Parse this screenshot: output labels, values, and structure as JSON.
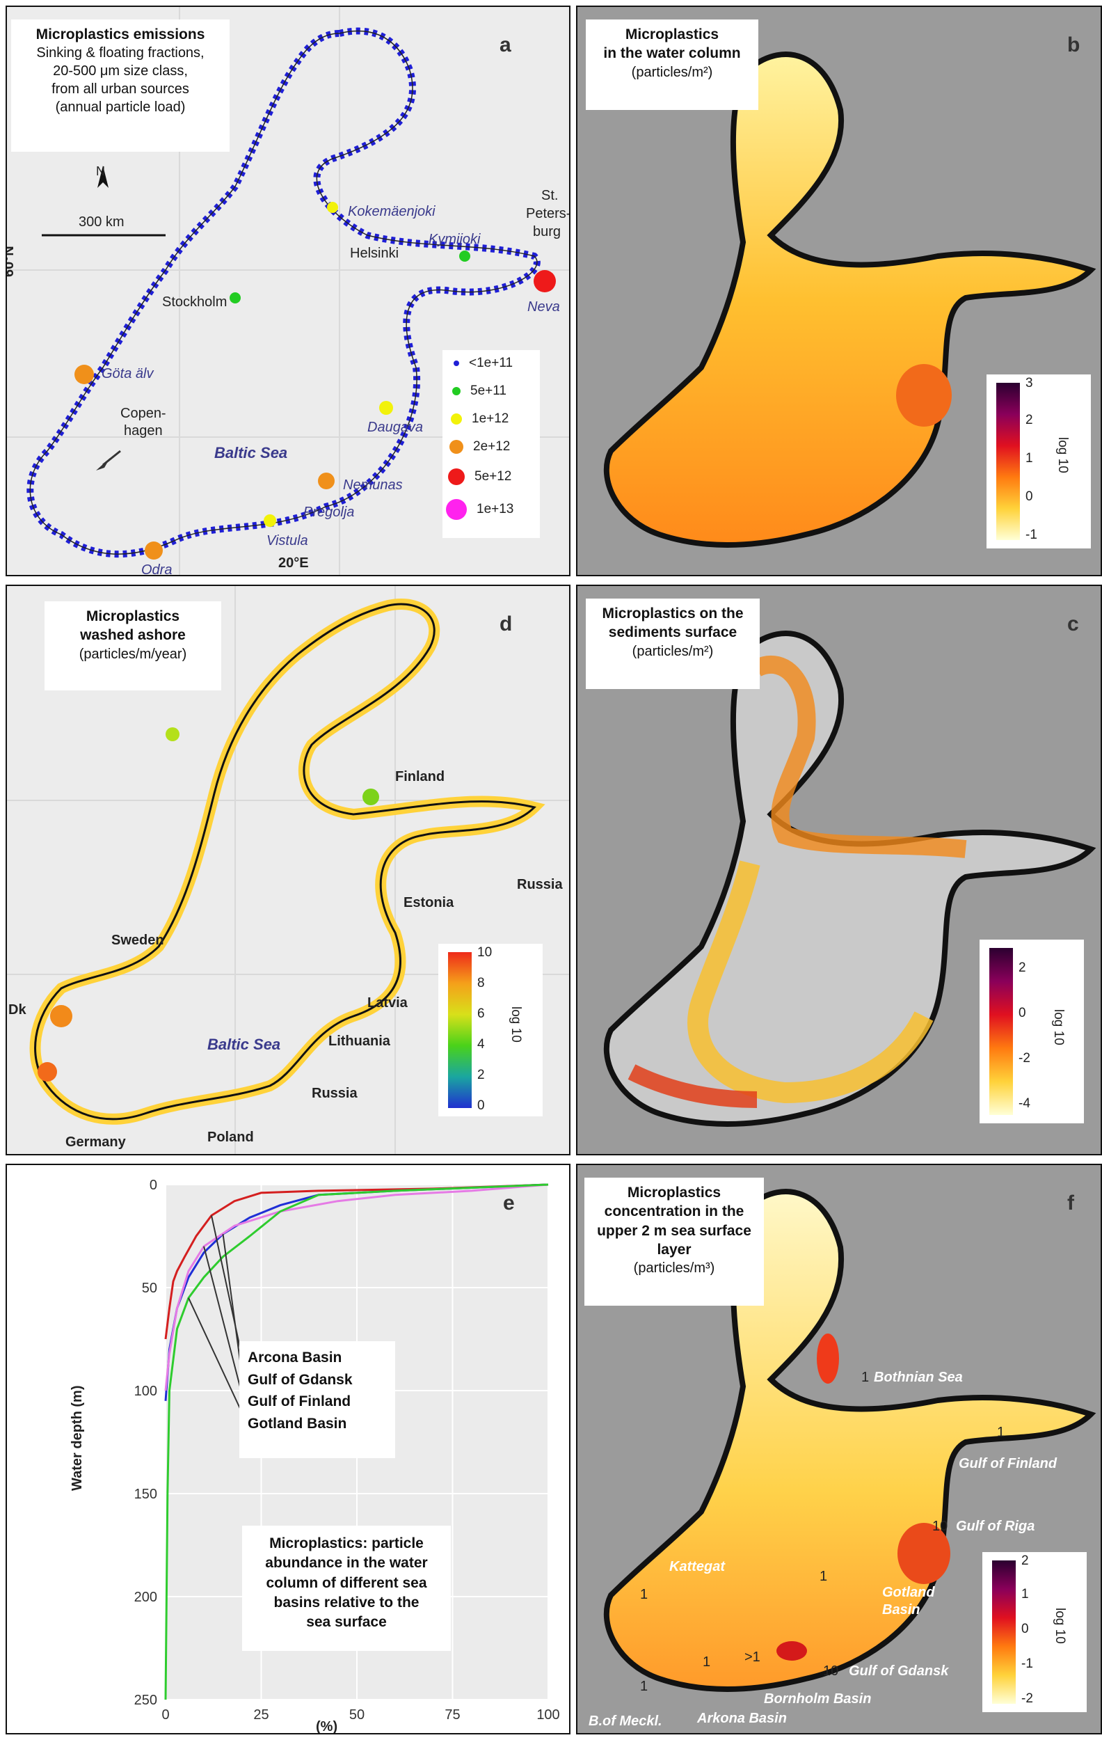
{
  "panel_a": {
    "letter": "a",
    "title": "Microplastics emissions",
    "subtitle_lines": [
      "Sinking & floating fractions,",
      "20-500 μm size class,",
      "from all urban sources",
      "(annual particle load)"
    ],
    "north": "N",
    "scale": "300 km",
    "lat_label": "60°N",
    "lon_label": "20°E",
    "sea_label": "Baltic Sea",
    "cities": {
      "helsinki": "Helsinki",
      "stockholm": "Stockholm",
      "copenhagen_1": "Copen-",
      "copenhagen_2": "hagen",
      "stpete_1": "St.",
      "stpete_2": "Peters-",
      "stpete_3": "burg"
    },
    "rivers": {
      "kokemaenjoki": "Kokemäenjoki",
      "kymijoki": "Kymijoki",
      "neva": "Neva",
      "gota": "Göta älv",
      "daugava": "Daugava",
      "nemunas": "Nemunas",
      "pregolja": "Pregolja",
      "vistula": "Vistula",
      "odra": "Odra"
    },
    "legend": [
      {
        "label": "<1e+11",
        "color": "#1f1fd6"
      },
      {
        "label": "5e+11",
        "color": "#22cc22"
      },
      {
        "label": "1e+12",
        "color": "#f2f20a"
      },
      {
        "label": "2e+12",
        "color": "#f0901a"
      },
      {
        "label": "5e+12",
        "color": "#ee1a1a"
      },
      {
        "label": "1e+13",
        "color": "#ff22ee"
      }
    ]
  },
  "panel_b": {
    "letter": "b",
    "title": "Microplastics",
    "title2": "in the water column",
    "unit": "(particles/m²)",
    "cbar_ticks": [
      "3",
      "2",
      "1",
      "0",
      "-1"
    ],
    "cbar_label": "log 10"
  },
  "panel_d": {
    "letter": "d",
    "title": "Microplastics",
    "title2": "washed ashore",
    "unit": "(particles/m/year)",
    "countries": {
      "finland": "Finland",
      "russia1": "Russia",
      "estonia": "Estonia",
      "sweden": "Sweden",
      "latvia": "Latvia",
      "lithuania": "Lithuania",
      "russia2": "Russia",
      "dk": "Dk",
      "germany": "Germany",
      "poland": "Poland"
    },
    "sea_label": "Baltic Sea",
    "cbar_ticks": [
      "10",
      "8",
      "6",
      "4",
      "2",
      "0"
    ],
    "cbar_label": "log 10"
  },
  "panel_c": {
    "letter": "c",
    "title": "Microplastics on the",
    "title2": "sediments surface",
    "unit": "(particles/m²)",
    "cbar_ticks": [
      "2",
      "0",
      "-2",
      "-4"
    ],
    "cbar_label": "log 10"
  },
  "panel_e": {
    "letter": "e",
    "ylabel": "Water depth (m)",
    "xlabel": "(%)",
    "annotation_lines": [
      "Microplastics: particle",
      "abundance in the water",
      "column of different sea",
      "basins relative to the",
      "sea surface"
    ],
    "series_labels": [
      "Arcona Basin",
      "Gulf of Gdansk",
      "Gulf of Finland",
      "Gotland Basin"
    ]
  },
  "panel_f": {
    "letter": "f",
    "title_lines": [
      "Microplastics",
      "concentration in the",
      "upper 2 m sea surface",
      "layer"
    ],
    "unit": "(particles/m³)",
    "places": {
      "bothnian": "Bothnian Sea",
      "finland": "Gulf of Finland",
      "riga": "Gulf of Riga",
      "gotland_1": "Gotland",
      "gotland_2": "Basin",
      "kattegat": "Kattegat",
      "gdansk": "Gulf of Gdansk",
      "bornholm": "Bornholm Basin",
      "arkona": "Arkona Basin",
      "meckl": "B.of Meckl."
    },
    "values": {
      "v1": "1",
      "v2": "1",
      "v3": "10",
      "v4": "1",
      "v5": "1",
      "v6": ">1",
      "v7": "1",
      "v8": "10",
      "v9": "1"
    },
    "cbar_ticks": [
      "2",
      "1",
      "0",
      "-1",
      "-2"
    ],
    "cbar_label": "log 10"
  },
  "chart_data": {
    "type": "line",
    "title": "",
    "xlabel": "(%)",
    "ylabel": "Water depth (m)",
    "xlim": [
      0,
      100
    ],
    "ylim": [
      0,
      250
    ],
    "y_inverted": true,
    "x_ticks": [
      "0",
      "25",
      "50",
      "75",
      "100"
    ],
    "y_ticks": [
      "0",
      "50",
      "100",
      "150",
      "200",
      "250"
    ],
    "grid": true,
    "series": [
      {
        "name": "Arcona Basin",
        "color": "#d41f1f",
        "x": [
          0,
          1,
          2,
          3,
          5,
          8,
          12,
          18,
          25,
          40,
          70,
          100
        ],
        "y": [
          75,
          60,
          47,
          42,
          35,
          25,
          15,
          8,
          4,
          3,
          2,
          0
        ]
      },
      {
        "name": "Gulf of Gdansk",
        "color": "#1f2fd6",
        "x": [
          0,
          1,
          3,
          6,
          10,
          15,
          22,
          30,
          40,
          60,
          100
        ],
        "y": [
          105,
          80,
          60,
          45,
          33,
          24,
          16,
          10,
          5,
          3,
          0
        ]
      },
      {
        "name": "Gulf of Finland",
        "color": "#e57be5",
        "x": [
          0,
          1,
          3,
          6,
          10,
          18,
          30,
          45,
          60,
          80,
          100
        ],
        "y": [
          100,
          82,
          60,
          42,
          30,
          20,
          13,
          8,
          5,
          3,
          0
        ]
      },
      {
        "name": "Gotland Basin",
        "color": "#2ecc2e",
        "x": [
          0,
          0.5,
          1,
          3,
          6,
          10,
          15,
          22,
          30,
          40,
          60,
          100
        ],
        "y": [
          250,
          150,
          100,
          70,
          55,
          45,
          35,
          25,
          13,
          5,
          3,
          0
        ]
      }
    ]
  }
}
